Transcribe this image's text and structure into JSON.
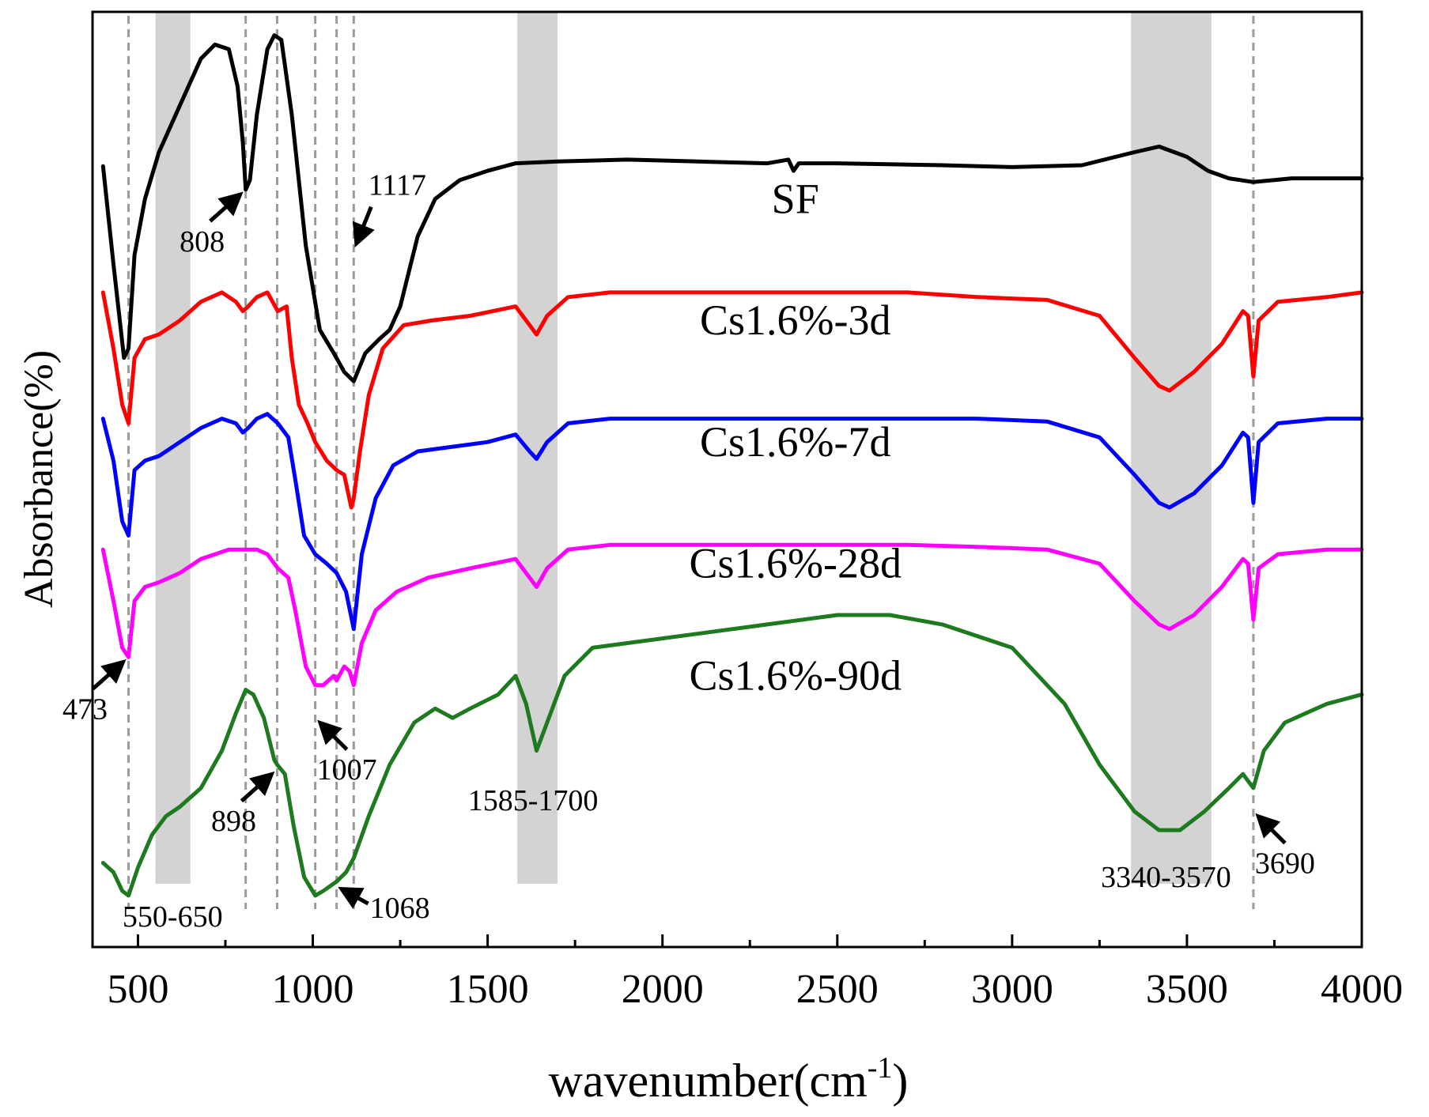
{
  "chart_data": {
    "type": "line",
    "title": "",
    "xlabel": "wavenumber(cm",
    "xlabel_sup": "-1",
    "xlabel_close": ")",
    "ylabel": "Absorbance(%)",
    "xlim": [
      370,
      4000
    ],
    "ylim": [
      0,
      100
    ],
    "x_ticks": [
      500,
      1000,
      1500,
      2000,
      2500,
      3000,
      3500,
      4000
    ],
    "grid": false,
    "legend": "none",
    "y_ticks_shown": false,
    "bands": [
      {
        "from": 550,
        "to": 650,
        "label": "550-650"
      },
      {
        "from": 1585,
        "to": 1700,
        "label": "1585-1700"
      },
      {
        "from": 3340,
        "to": 3570,
        "label": "3340-3570"
      }
    ],
    "band_color": "#d3d3d3",
    "reference_lines": [
      473,
      808,
      898,
      1007,
      1068,
      1117,
      3690
    ],
    "reference_color": "#9a9a9a",
    "annotations": [
      {
        "text": "808",
        "x": 808,
        "y": 81.0,
        "dir": "lower-left"
      },
      {
        "text": "1117",
        "x": 1117,
        "y": 74.5,
        "dir": "upper-right"
      },
      {
        "text": "473",
        "x": 473,
        "y": 31.0,
        "dir": "lower-left"
      },
      {
        "text": "898",
        "x": 898,
        "y": 19.0,
        "dir": "lower-left"
      },
      {
        "text": "1007",
        "x": 1007,
        "y": 24.5,
        "dir": "lower-right"
      },
      {
        "text": "1068",
        "x": 1068,
        "y": 6.5,
        "dir": "right"
      },
      {
        "text": "3690",
        "x": 3690,
        "y": 14.5,
        "dir": "lower-right"
      }
    ],
    "series": [
      {
        "name": "SF",
        "color": "#000000",
        "label_x": 2380,
        "label_y": 78.5,
        "points": [
          [
            400,
            83.5
          ],
          [
            430,
            73
          ],
          [
            460,
            63
          ],
          [
            473,
            64
          ],
          [
            490,
            74
          ],
          [
            520,
            80
          ],
          [
            560,
            85
          ],
          [
            620,
            90
          ],
          [
            680,
            95
          ],
          [
            720,
            96.5
          ],
          [
            760,
            96
          ],
          [
            785,
            92
          ],
          [
            800,
            86
          ],
          [
            808,
            81
          ],
          [
            820,
            82
          ],
          [
            840,
            89
          ],
          [
            870,
            96
          ],
          [
            890,
            97.5
          ],
          [
            910,
            97
          ],
          [
            940,
            89
          ],
          [
            980,
            75
          ],
          [
            1020,
            66
          ],
          [
            1060,
            63.5
          ],
          [
            1090,
            61.5
          ],
          [
            1117,
            60.5
          ],
          [
            1150,
            63.5
          ],
          [
            1190,
            65
          ],
          [
            1220,
            66
          ],
          [
            1250,
            68.5
          ],
          [
            1300,
            76
          ],
          [
            1350,
            80
          ],
          [
            1420,
            82
          ],
          [
            1500,
            83
          ],
          [
            1580,
            83.8
          ],
          [
            1700,
            84
          ],
          [
            1900,
            84.2
          ],
          [
            2100,
            84
          ],
          [
            2300,
            83.8
          ],
          [
            2360,
            84.2
          ],
          [
            2375,
            83
          ],
          [
            2390,
            83.8
          ],
          [
            2500,
            83.8
          ],
          [
            2800,
            83.6
          ],
          [
            3000,
            83.4
          ],
          [
            3200,
            83.6
          ],
          [
            3350,
            85
          ],
          [
            3420,
            85.6
          ],
          [
            3500,
            84.5
          ],
          [
            3560,
            83
          ],
          [
            3620,
            82.2
          ],
          [
            3690,
            81.8
          ],
          [
            3800,
            82.2
          ],
          [
            4000,
            82.2
          ]
        ]
      },
      {
        "name": "Cs1.6%-3d",
        "color": "#ff0000",
        "label_x": 2380,
        "label_y": 65.5,
        "points": [
          [
            400,
            70
          ],
          [
            430,
            64
          ],
          [
            455,
            58
          ],
          [
            473,
            56
          ],
          [
            490,
            63
          ],
          [
            520,
            65
          ],
          [
            560,
            65.5
          ],
          [
            620,
            67
          ],
          [
            680,
            69
          ],
          [
            740,
            70
          ],
          [
            780,
            69
          ],
          [
            800,
            68
          ],
          [
            815,
            68.5
          ],
          [
            840,
            69.5
          ],
          [
            870,
            70
          ],
          [
            900,
            68
          ],
          [
            925,
            68.5
          ],
          [
            940,
            63
          ],
          [
            960,
            58
          ],
          [
            985,
            56
          ],
          [
            1007,
            54
          ],
          [
            1040,
            52
          ],
          [
            1068,
            51
          ],
          [
            1090,
            50.5
          ],
          [
            1110,
            47
          ],
          [
            1117,
            48
          ],
          [
            1135,
            53
          ],
          [
            1160,
            59
          ],
          [
            1200,
            64
          ],
          [
            1260,
            66.5
          ],
          [
            1340,
            67
          ],
          [
            1450,
            67.5
          ],
          [
            1580,
            68.5
          ],
          [
            1620,
            66.5
          ],
          [
            1640,
            65.5
          ],
          [
            1670,
            67.5
          ],
          [
            1730,
            69.5
          ],
          [
            1850,
            70
          ],
          [
            2100,
            70
          ],
          [
            2400,
            70
          ],
          [
            2700,
            70
          ],
          [
            2900,
            69.5
          ],
          [
            3100,
            69.2
          ],
          [
            3250,
            67.5
          ],
          [
            3350,
            63
          ],
          [
            3420,
            60
          ],
          [
            3450,
            59.5
          ],
          [
            3520,
            61.5
          ],
          [
            3600,
            64.5
          ],
          [
            3660,
            68
          ],
          [
            3675,
            67.5
          ],
          [
            3690,
            61
          ],
          [
            3705,
            67
          ],
          [
            3760,
            69
          ],
          [
            3900,
            69.5
          ],
          [
            4000,
            70
          ]
        ]
      },
      {
        "name": "Cs1.6%-7d",
        "color": "#0000ff",
        "label_x": 2380,
        "label_y": 52.5,
        "points": [
          [
            400,
            56.5
          ],
          [
            430,
            52
          ],
          [
            455,
            45.5
          ],
          [
            473,
            44
          ],
          [
            490,
            51
          ],
          [
            520,
            52
          ],
          [
            560,
            52.5
          ],
          [
            620,
            54
          ],
          [
            680,
            55.5
          ],
          [
            740,
            56.5
          ],
          [
            780,
            56
          ],
          [
            800,
            55
          ],
          [
            815,
            55.5
          ],
          [
            840,
            56.5
          ],
          [
            870,
            57
          ],
          [
            900,
            56
          ],
          [
            930,
            54.5
          ],
          [
            950,
            50
          ],
          [
            975,
            44
          ],
          [
            1007,
            42
          ],
          [
            1040,
            41
          ],
          [
            1068,
            40
          ],
          [
            1095,
            38
          ],
          [
            1117,
            34
          ],
          [
            1140,
            42
          ],
          [
            1180,
            48
          ],
          [
            1230,
            51.5
          ],
          [
            1300,
            53
          ],
          [
            1400,
            53.5
          ],
          [
            1500,
            54
          ],
          [
            1580,
            54.8
          ],
          [
            1620,
            53
          ],
          [
            1640,
            52.2
          ],
          [
            1670,
            54
          ],
          [
            1730,
            56
          ],
          [
            1850,
            56.5
          ],
          [
            2100,
            56.5
          ],
          [
            2400,
            56.5
          ],
          [
            2700,
            56.5
          ],
          [
            2900,
            56.5
          ],
          [
            3100,
            56.2
          ],
          [
            3250,
            54.5
          ],
          [
            3350,
            50.5
          ],
          [
            3420,
            47.5
          ],
          [
            3450,
            47
          ],
          [
            3520,
            48.5
          ],
          [
            3600,
            51.5
          ],
          [
            3660,
            55
          ],
          [
            3675,
            54.5
          ],
          [
            3690,
            47.5
          ],
          [
            3705,
            54
          ],
          [
            3760,
            56
          ],
          [
            3900,
            56.5
          ],
          [
            4000,
            56.5
          ]
        ]
      },
      {
        "name": "Cs1.6%-28d",
        "color": "#ff00ff",
        "label_x": 2380,
        "label_y": 39.5,
        "points": [
          [
            400,
            42.5
          ],
          [
            430,
            37
          ],
          [
            455,
            32
          ],
          [
            473,
            31
          ],
          [
            490,
            37
          ],
          [
            520,
            38.5
          ],
          [
            560,
            39
          ],
          [
            620,
            40
          ],
          [
            680,
            41.5
          ],
          [
            760,
            42.5
          ],
          [
            800,
            42.5
          ],
          [
            840,
            42.5
          ],
          [
            870,
            42
          ],
          [
            900,
            40.5
          ],
          [
            930,
            39.5
          ],
          [
            950,
            36
          ],
          [
            980,
            30
          ],
          [
            1007,
            28
          ],
          [
            1030,
            28
          ],
          [
            1060,
            29
          ],
          [
            1068,
            28.5
          ],
          [
            1090,
            30
          ],
          [
            1105,
            29.5
          ],
          [
            1117,
            28
          ],
          [
            1140,
            32.5
          ],
          [
            1180,
            36
          ],
          [
            1240,
            38
          ],
          [
            1330,
            39.5
          ],
          [
            1450,
            40.5
          ],
          [
            1580,
            41.5
          ],
          [
            1620,
            39.5
          ],
          [
            1640,
            38.5
          ],
          [
            1670,
            40.5
          ],
          [
            1730,
            42.5
          ],
          [
            1850,
            43
          ],
          [
            2100,
            43
          ],
          [
            2400,
            43
          ],
          [
            2700,
            43
          ],
          [
            2900,
            42.8
          ],
          [
            3100,
            42.5
          ],
          [
            3250,
            41
          ],
          [
            3350,
            37
          ],
          [
            3420,
            34.5
          ],
          [
            3450,
            34
          ],
          [
            3520,
            35.5
          ],
          [
            3600,
            38.5
          ],
          [
            3660,
            41.5
          ],
          [
            3675,
            41
          ],
          [
            3690,
            35
          ],
          [
            3705,
            40.5
          ],
          [
            3760,
            42
          ],
          [
            3900,
            42.5
          ],
          [
            4000,
            42.5
          ]
        ]
      },
      {
        "name": "Cs1.6%-90d",
        "color": "#1e7a1e",
        "label_x": 2380,
        "label_y": 27.5,
        "points": [
          [
            400,
            9
          ],
          [
            430,
            8
          ],
          [
            455,
            6
          ],
          [
            473,
            5.5
          ],
          [
            500,
            8.5
          ],
          [
            540,
            12
          ],
          [
            580,
            14
          ],
          [
            620,
            15
          ],
          [
            680,
            17
          ],
          [
            740,
            21
          ],
          [
            780,
            25
          ],
          [
            808,
            27.5
          ],
          [
            830,
            27
          ],
          [
            860,
            24.5
          ],
          [
            890,
            20
          ],
          [
            898,
            19.5
          ],
          [
            920,
            18.5
          ],
          [
            945,
            13
          ],
          [
            975,
            7.5
          ],
          [
            1007,
            5.5
          ],
          [
            1030,
            6
          ],
          [
            1068,
            7
          ],
          [
            1095,
            8
          ],
          [
            1117,
            9.5
          ],
          [
            1160,
            14
          ],
          [
            1220,
            19.5
          ],
          [
            1290,
            24
          ],
          [
            1350,
            25.5
          ],
          [
            1400,
            24.5
          ],
          [
            1450,
            25.5
          ],
          [
            1530,
            27
          ],
          [
            1580,
            29
          ],
          [
            1610,
            26
          ],
          [
            1640,
            21
          ],
          [
            1670,
            24
          ],
          [
            1720,
            29
          ],
          [
            1800,
            32
          ],
          [
            1900,
            32.5
          ],
          [
            2100,
            33.5
          ],
          [
            2300,
            34.5
          ],
          [
            2500,
            35.5
          ],
          [
            2650,
            35.5
          ],
          [
            2800,
            34.5
          ],
          [
            3000,
            32
          ],
          [
            3150,
            26
          ],
          [
            3250,
            19.5
          ],
          [
            3350,
            14.5
          ],
          [
            3420,
            12.5
          ],
          [
            3480,
            12.5
          ],
          [
            3550,
            14.5
          ],
          [
            3620,
            17
          ],
          [
            3660,
            18.5
          ],
          [
            3690,
            17
          ],
          [
            3720,
            21
          ],
          [
            3780,
            24
          ],
          [
            3900,
            26
          ],
          [
            4000,
            27
          ]
        ]
      }
    ]
  }
}
